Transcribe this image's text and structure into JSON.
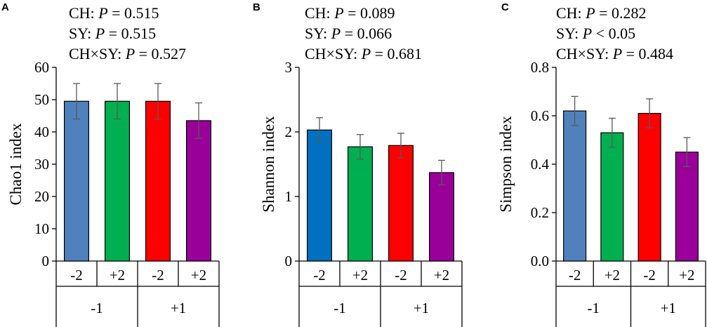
{
  "chart_data": [
    {
      "panel": "A",
      "type": "bar",
      "stats": [
        {
          "label": "CH:",
          "p": "P",
          "op": "= 0.515"
        },
        {
          "label": "SY:",
          "p": "P",
          "op": "= 0.515"
        },
        {
          "label": "CH×SY:",
          "p": "P",
          "op": "= 0.527"
        }
      ],
      "ylabel": "Chao1 index",
      "ylim": [
        0,
        60
      ],
      "yticks": [
        0,
        10,
        20,
        30,
        40,
        50,
        60
      ],
      "ytick_labels": [
        "0",
        "10",
        "20",
        "30",
        "40",
        "50",
        "60"
      ],
      "categories": [
        "-2",
        "+2",
        "-2",
        "+2"
      ],
      "groups": [
        "-1",
        "+1"
      ],
      "values": [
        49.5,
        49.5,
        49.5,
        43.5
      ],
      "errors": [
        5.5,
        5.5,
        5.5,
        5.5
      ],
      "colors": [
        "#4f81bd",
        "#00b050",
        "#ff0000",
        "#990099"
      ]
    },
    {
      "panel": "B",
      "type": "bar",
      "stats": [
        {
          "label": "CH:",
          "p": "P",
          "op": "= 0.089"
        },
        {
          "label": "SY:",
          "p": "P",
          "op": "= 0.066"
        },
        {
          "label": "CH×SY:",
          "p": "P",
          "op": "= 0.681"
        }
      ],
      "ylabel": "Shannon index",
      "ylim": [
        0,
        3
      ],
      "yticks": [
        0,
        1,
        2,
        3
      ],
      "ytick_labels": [
        "0",
        "1",
        "2",
        "3"
      ],
      "categories": [
        "-2",
        "+2",
        "-2",
        "+2"
      ],
      "groups": [
        "-1",
        "+1"
      ],
      "values": [
        2.03,
        1.77,
        1.79,
        1.37
      ],
      "errors": [
        0.19,
        0.19,
        0.19,
        0.19
      ],
      "colors": [
        "#0070c0",
        "#00b050",
        "#ff0000",
        "#990099"
      ]
    },
    {
      "panel": "C",
      "type": "bar",
      "stats": [
        {
          "label": "CH:",
          "p": "P",
          "op": "= 0.282"
        },
        {
          "label": "SY:",
          "p": "P",
          "op": "< 0.05"
        },
        {
          "label": "CH×SY:",
          "p": "P",
          "op": "= 0.484"
        }
      ],
      "ylabel": "Simpson index",
      "ylim": [
        0,
        0.8
      ],
      "yticks": [
        0,
        0.2,
        0.4,
        0.6,
        0.8
      ],
      "ytick_labels": [
        "0.0",
        "0.2",
        "0.4",
        "0.6",
        "0.8"
      ],
      "categories": [
        "-2",
        "+2",
        "-2",
        "+2"
      ],
      "groups": [
        "-1",
        "+1"
      ],
      "values": [
        0.62,
        0.53,
        0.61,
        0.45
      ],
      "errors": [
        0.06,
        0.06,
        0.06,
        0.06
      ],
      "colors": [
        "#4f81bd",
        "#00b050",
        "#ff0000",
        "#990099"
      ]
    }
  ]
}
